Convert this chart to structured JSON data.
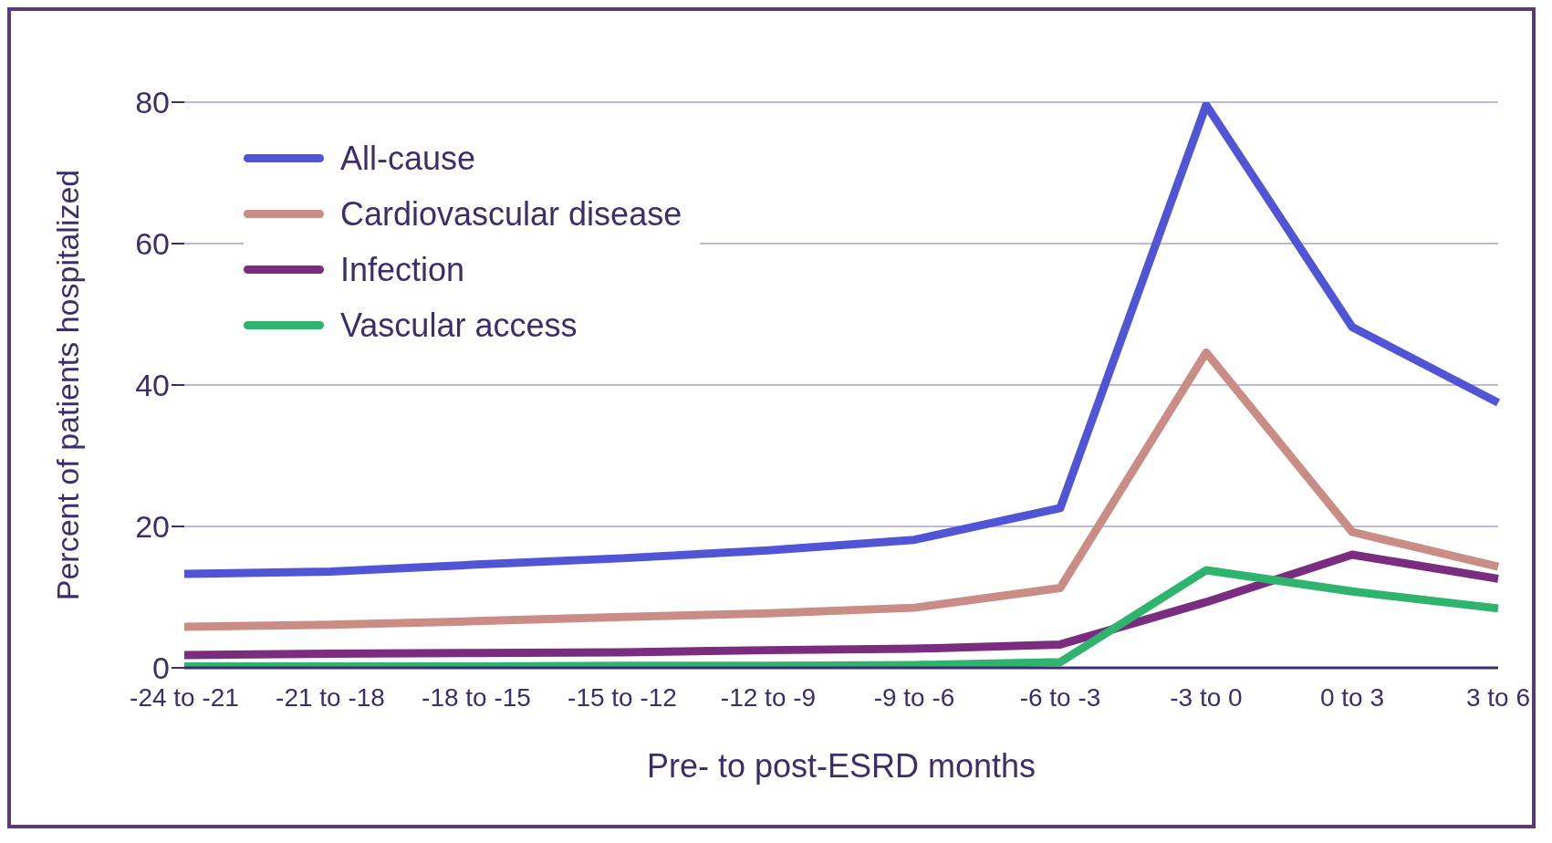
{
  "chart_data": {
    "type": "line",
    "xlabel": "Pre- to post-ESRD months",
    "ylabel": "Percent of patients hospitalized",
    "categories": [
      "-24 to -21",
      "-21 to -18",
      "-18 to -15",
      "-15 to -12",
      "-12 to -9",
      "-9 to -6",
      "-6 to -3",
      "-3 to 0",
      "0 to 3",
      "3 to 6"
    ],
    "series": [
      {
        "name": "All-cause",
        "color": "#5055d6",
        "values": [
          13.3,
          13.6,
          14.6,
          15.5,
          16.6,
          18.1,
          22.6,
          79.6,
          48.2,
          37.5
        ]
      },
      {
        "name": "Cardiovascular disease",
        "color": "#c98d86",
        "values": [
          5.8,
          6.1,
          6.6,
          7.2,
          7.7,
          8.5,
          11.3,
          44.6,
          19.2,
          14.3
        ]
      },
      {
        "name": "Infection",
        "color": "#7a2d7e",
        "values": [
          1.8,
          2.0,
          2.1,
          2.2,
          2.5,
          2.7,
          3.3,
          9.3,
          16.0,
          12.6
        ]
      },
      {
        "name": "Vascular access",
        "color": "#2fb46e",
        "values": [
          0.2,
          0.2,
          0.2,
          0.3,
          0.3,
          0.4,
          0.8,
          13.8,
          10.8,
          8.4
        ]
      }
    ],
    "ylim": [
      0,
      80
    ],
    "yticks": [
      0,
      20,
      40,
      60,
      80
    ],
    "grid": "y",
    "legend": "top left",
    "marker": "none",
    "line_style": "solid"
  }
}
